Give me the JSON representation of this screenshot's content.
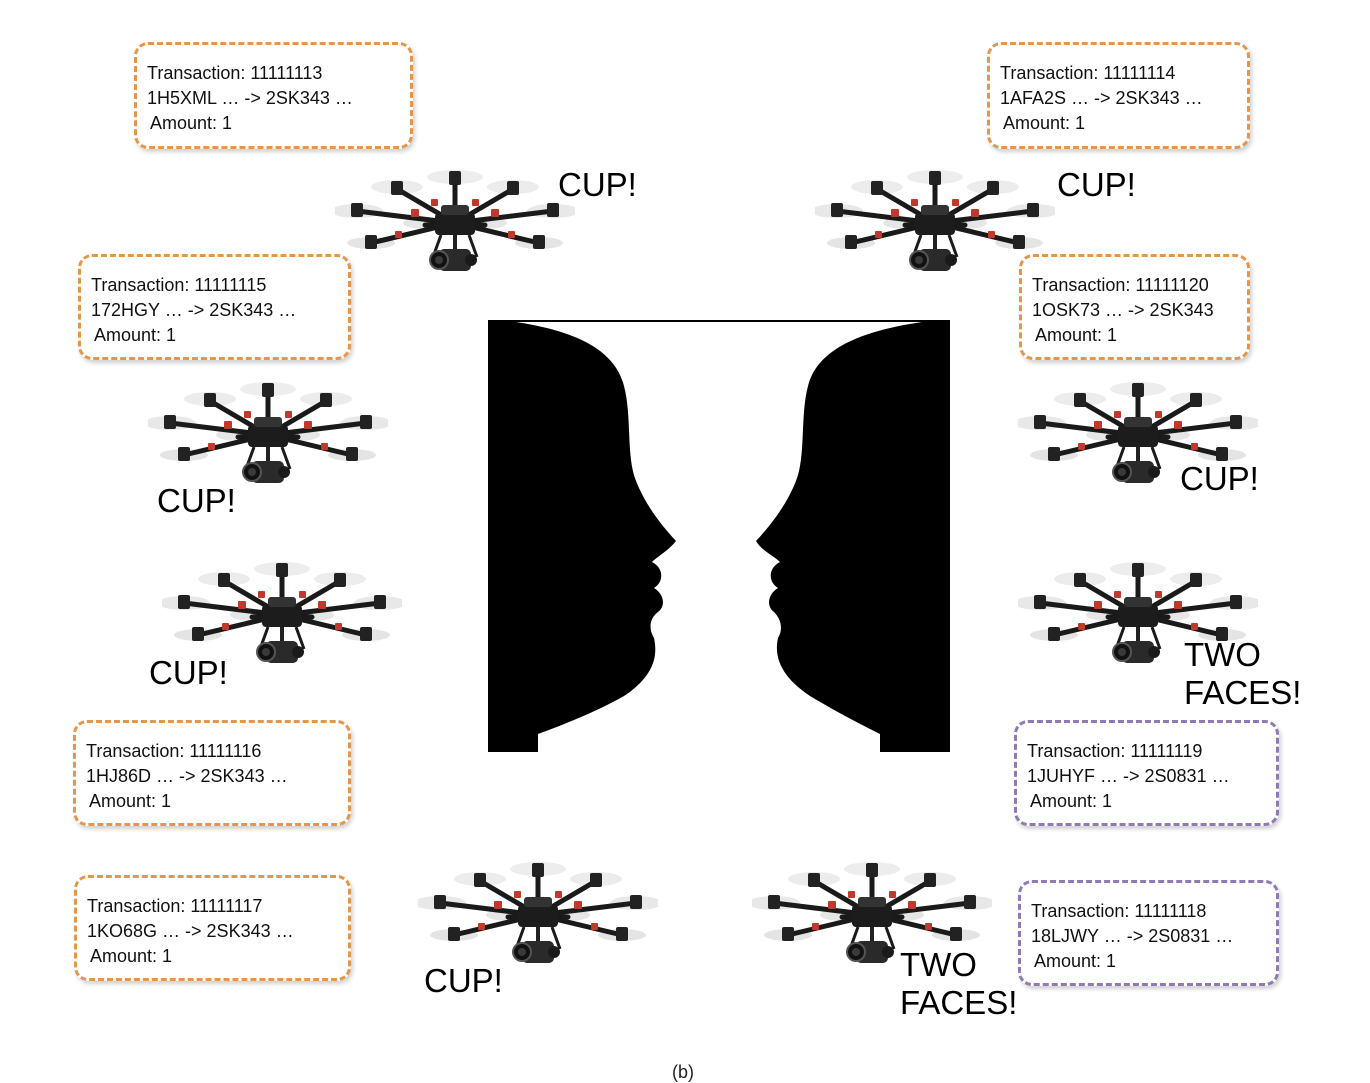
{
  "transactions": [
    {
      "id": "Transaction: 11111113",
      "flow": "1H5XML … -> 2SK343 …",
      "amount": "Amount: 1",
      "color": "#e6964a"
    },
    {
      "id": "Transaction: 11111114",
      "flow": "1AFA2S … -> 2SK343 …",
      "amount": "Amount: 1",
      "color": "#e6964a"
    },
    {
      "id": "Transaction: 11111115",
      "flow": "172HGY … -> 2SK343 …",
      "amount": "Amount: 1",
      "color": "#e6964a"
    },
    {
      "id": "Transaction: 11111120",
      "flow": "1OSK73 … -> 2SK343",
      "amount": "Amount: 1",
      "color": "#e6964a"
    },
    {
      "id": "Transaction: 11111116",
      "flow": "1HJ86D … -> 2SK343 …",
      "amount": "Amount: 1",
      "color": "#e6964a"
    },
    {
      "id": "Transaction: 11111119",
      "flow": "1JUHYF … -> 2S0831 …",
      "amount": "Amount: 1",
      "color": "#8e7bb5"
    },
    {
      "id": "Transaction: 11111117",
      "flow": "1KO68G … -> 2SK343 …",
      "amount": "Amount: 1",
      "color": "#e6964a"
    },
    {
      "id": "Transaction: 11111118",
      "flow": "18LJWY … -> 2S0831 …",
      "amount": "Amount: 1",
      "color": "#8e7bb5"
    }
  ],
  "labels": {
    "cup": "CUP!",
    "two": "TWO",
    "faces": "FACES!"
  },
  "caption": "(b)",
  "illusion_icon": "rubin-vase-faces-illusion",
  "drone_icon": "hexacopter-drone-icon"
}
